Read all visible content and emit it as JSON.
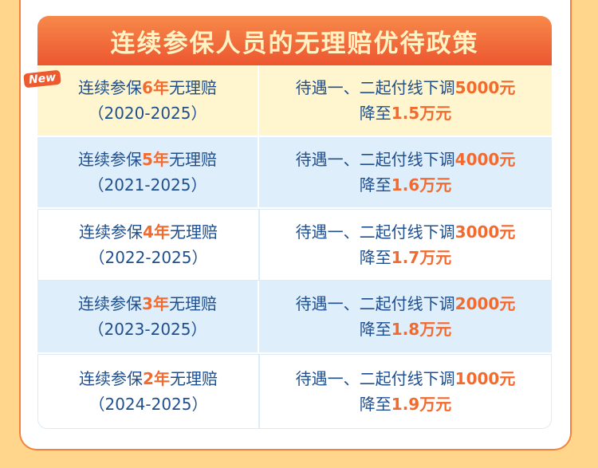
{
  "title": "连续参保人员的无理赔优待政策",
  "badge": "New",
  "rows": [
    {
      "pre": "连续参保",
      "years": "6年",
      "post": "无理赔",
      "range": "（2020-2025）",
      "line1": "待遇一、二起付线下调",
      "amount": "5000元",
      "line2": "降至",
      "cap": "1.5万元",
      "bg": "y"
    },
    {
      "pre": "连续参保",
      "years": "5年",
      "post": "无理赔",
      "range": "（2021-2025）",
      "line1": "待遇一、二起付线下调",
      "amount": "4000元",
      "line2": "降至",
      "cap": "1.6万元",
      "bg": "b"
    },
    {
      "pre": "连续参保",
      "years": "4年",
      "post": "无理赔",
      "range": "（2022-2025）",
      "line1": "待遇一、二起付线下调",
      "amount": "3000元",
      "line2": "降至",
      "cap": "1.7万元",
      "bg": "w"
    },
    {
      "pre": "连续参保",
      "years": "3年",
      "post": "无理赔",
      "range": "（2023-2025）",
      "line1": "待遇一、二起付线下调",
      "amount": "2000元",
      "line2": "降至",
      "cap": "1.8万元",
      "bg": "b"
    },
    {
      "pre": "连续参保",
      "years": "2年",
      "post": "无理赔",
      "range": "（2024-2025）",
      "line1": "待遇一、二起付线下调",
      "amount": "1000元",
      "line2": "降至",
      "cap": "1.9万元",
      "bg": "w"
    }
  ],
  "colors": {
    "accent": "#F26A2E",
    "text": "#1F4F8E",
    "background": "#FFD68C"
  }
}
